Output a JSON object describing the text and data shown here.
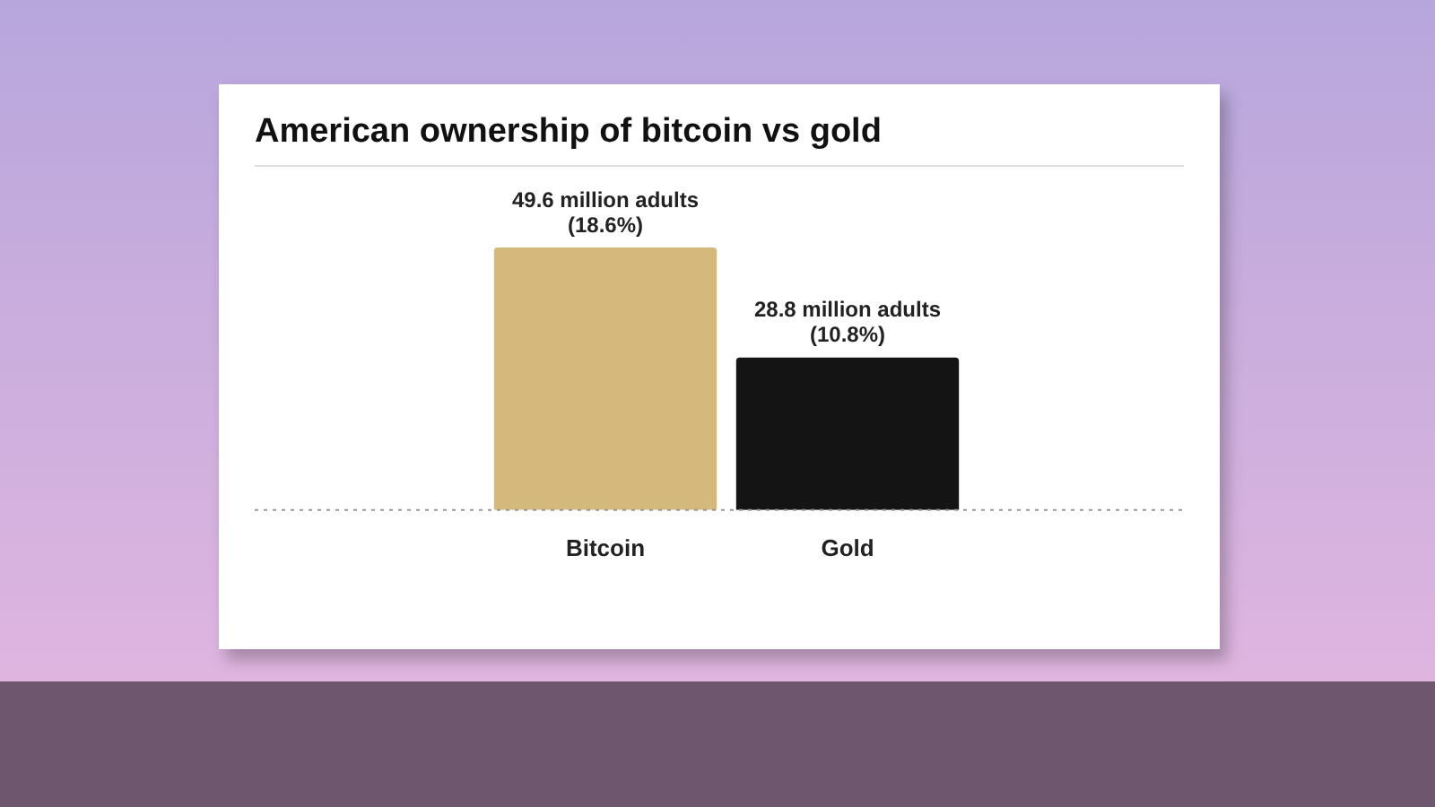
{
  "chart_data": {
    "type": "bar",
    "title": "American ownership of bitcoin vs gold",
    "categories": [
      "Bitcoin",
      "Gold"
    ],
    "values": [
      49.6,
      28.8
    ],
    "colors": [
      "#d4b87c",
      "#141414"
    ],
    "value_labels": [
      "49.6 million adults",
      "28.8 million adults"
    ],
    "annotations": [
      {
        "text": "(18.6%)",
        "x": "Bitcoin",
        "y": 49.6
      },
      {
        "text": "(10.8%)",
        "x": "Gold",
        "y": 28.8
      }
    ],
    "tick_labels": "x",
    "grid": false,
    "legend": false
  }
}
